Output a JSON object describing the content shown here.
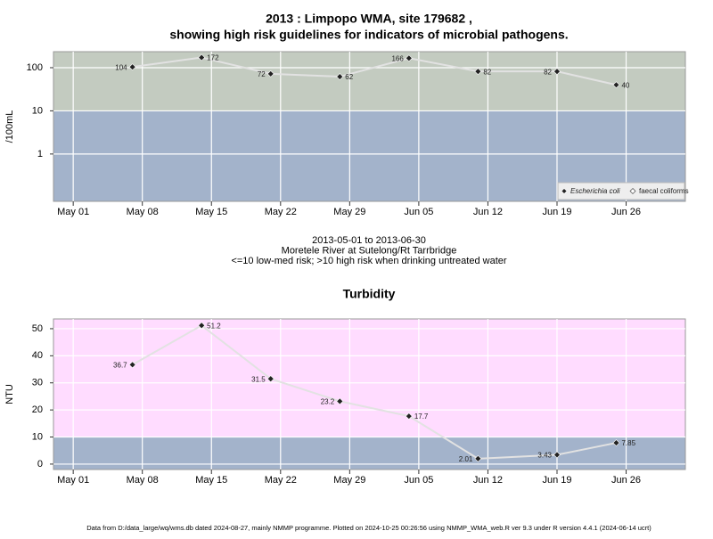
{
  "chart_data": [
    {
      "type": "line",
      "title": [
        "2013 : Limpopo WMA, site 179682 ,",
        "showing high risk guidelines for indicators of microbial pathogens."
      ],
      "ylabel": "/100mL",
      "x": [
        "May 07",
        "May 14",
        "May 21",
        "May 28",
        "Jun 04",
        "Jun 11",
        "Jun 19",
        "Jun 25"
      ],
      "series": [
        {
          "name": "Escherichia coli",
          "color": "#222222",
          "values": [
            104,
            172,
            72,
            62,
            166,
            82,
            82,
            40
          ]
        },
        {
          "name": "faecal coliforms",
          "color": "#ffffff",
          "values": [
            null,
            null,
            null,
            null,
            null,
            null,
            null,
            null
          ]
        }
      ],
      "xlim": [
        "Apr 29",
        "Jul 02"
      ],
      "xticks": [
        "May 01",
        "May 08",
        "May 15",
        "May 22",
        "May 29",
        "Jun 05",
        "Jun 12",
        "Jun 19",
        "Jun 26"
      ],
      "ylim": [
        0.08,
        235
      ],
      "yticks": [
        1,
        10,
        100
      ],
      "log_y": true,
      "grid": true,
      "threshold": 10,
      "band_colors": [
        "#a3b3cb",
        "#c3cbc0"
      ],
      "legend": "bottom-right",
      "subtitle": [
        "2013-05-01 to 2013-06-30",
        "Moretele River at Sutelong/Rt Tarrbridge",
        "<=10 low-med risk; >10 high risk when drinking untreated water"
      ]
    },
    {
      "type": "line",
      "title": [
        "Turbidity"
      ],
      "ylabel": "NTU",
      "x": [
        "May 07",
        "May 14",
        "May 21",
        "May 28",
        "Jun 04",
        "Jun 11",
        "Jun 19",
        "Jun 25"
      ],
      "series": [
        {
          "name": "Turbidity",
          "color": "#222222",
          "values": [
            36.7,
            51.2,
            31.5,
            23.2,
            17.7,
            2.01,
            3.43,
            7.85
          ]
        }
      ],
      "xlim": [
        "Apr 29",
        "Jul 02"
      ],
      "xticks": [
        "May 01",
        "May 08",
        "May 15",
        "May 22",
        "May 29",
        "Jun 05",
        "Jun 12",
        "Jun 19",
        "Jun 26"
      ],
      "ylim": [
        -2,
        53.6
      ],
      "yticks": [
        0,
        10,
        20,
        30,
        40,
        50
      ],
      "log_y": false,
      "grid": true,
      "threshold": 10,
      "band_colors": [
        "#a3b3cb",
        "#ffdcff"
      ]
    }
  ],
  "footer": "Data from D:/data_large/wq/wms.db dated 2024-08-27, mainly NMMP programme. Plotted on 2024-10-25 00:26:56 using NMMP_WMA_web.R ver 9.3 under R version 4.4.1 (2024-06-14 ucrt)"
}
